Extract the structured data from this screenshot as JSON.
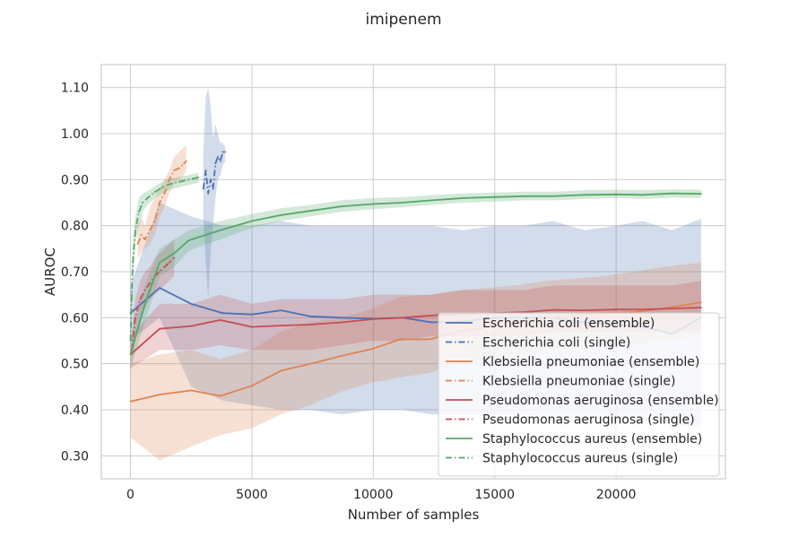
{
  "chart_data": {
    "type": "line",
    "title": "imipenem",
    "xlabel": "Number of samples",
    "ylabel": "AUROC",
    "xlim": [
      -1200,
      24500
    ],
    "ylim": [
      0.25,
      1.15
    ],
    "xticks": [
      0,
      5000,
      10000,
      15000,
      20000
    ],
    "xtick_labels": [
      "0",
      "5000",
      "10000",
      "15000",
      "20000"
    ],
    "yticks": [
      0.3,
      0.4,
      0.5,
      0.6,
      0.7,
      0.8,
      0.9,
      1.0,
      1.1
    ],
    "ytick_labels": [
      "0.30",
      "0.40",
      "0.50",
      "0.60",
      "0.70",
      "0.80",
      "0.90",
      "1.00",
      "1.10"
    ],
    "grid": true,
    "legend_position": "lower-right",
    "series": [
      {
        "name": "Escherichia coli (ensemble)",
        "color": "#4c72b0",
        "dash": "solid",
        "points": [
          [
            0,
            0.61
          ],
          [
            1200,
            0.665
          ],
          [
            2500,
            0.63
          ],
          [
            3800,
            0.61
          ],
          [
            5000,
            0.607
          ],
          [
            6200,
            0.616
          ],
          [
            7400,
            0.603
          ],
          [
            8700,
            0.6
          ],
          [
            10000,
            0.598
          ],
          [
            11200,
            0.6
          ],
          [
            12400,
            0.59
          ],
          [
            13700,
            0.592
          ],
          [
            15000,
            0.6
          ],
          [
            16200,
            0.6
          ],
          [
            17400,
            0.6
          ],
          [
            18700,
            0.59
          ],
          [
            20000,
            0.585
          ],
          [
            21100,
            0.58
          ],
          [
            22300,
            0.565
          ],
          [
            23500,
            0.6
          ]
        ],
        "band": [
          [
            0,
            0.55,
            0.67
          ],
          [
            1200,
            0.6,
            0.85
          ],
          [
            2500,
            0.45,
            0.82
          ],
          [
            3800,
            0.42,
            0.8
          ],
          [
            5000,
            0.41,
            0.8
          ],
          [
            6200,
            0.4,
            0.81
          ],
          [
            7400,
            0.4,
            0.8
          ],
          [
            8700,
            0.39,
            0.8
          ],
          [
            10000,
            0.4,
            0.8
          ],
          [
            11200,
            0.4,
            0.8
          ],
          [
            12400,
            0.39,
            0.8
          ],
          [
            13700,
            0.39,
            0.79
          ],
          [
            15000,
            0.39,
            0.8
          ],
          [
            16200,
            0.39,
            0.8
          ],
          [
            17400,
            0.38,
            0.81
          ],
          [
            18700,
            0.38,
            0.79
          ],
          [
            20000,
            0.38,
            0.8
          ],
          [
            21100,
            0.38,
            0.81
          ],
          [
            22300,
            0.37,
            0.79
          ],
          [
            23500,
            0.36,
            0.815
          ]
        ]
      },
      {
        "name": "Escherichia coli (single)",
        "color": "#4c72b0",
        "dash": "dashdot",
        "points": [
          [
            3000,
            0.88
          ],
          [
            3100,
            0.92
          ],
          [
            3200,
            0.87
          ],
          [
            3300,
            0.9
          ],
          [
            3400,
            0.88
          ],
          [
            3500,
            0.935
          ],
          [
            3600,
            0.95
          ],
          [
            3700,
            0.94
          ],
          [
            3800,
            0.96
          ],
          [
            3900,
            0.96
          ]
        ],
        "band": [
          [
            3000,
            0.82,
            0.96
          ],
          [
            3100,
            0.72,
            1.08
          ],
          [
            3200,
            0.64,
            1.1
          ],
          [
            3300,
            0.74,
            1.06
          ],
          [
            3400,
            0.8,
            0.99
          ],
          [
            3500,
            0.86,
            1.02
          ],
          [
            3600,
            0.9,
            1.0
          ],
          [
            3700,
            0.91,
            0.98
          ],
          [
            3800,
            0.93,
            0.98
          ],
          [
            3900,
            0.94,
            0.97
          ]
        ]
      },
      {
        "name": "Klebsiella pneumoniae (ensemble)",
        "color": "#dd8452",
        "dash": "solid",
        "points": [
          [
            0,
            0.418
          ],
          [
            1200,
            0.433
          ],
          [
            2500,
            0.442
          ],
          [
            3700,
            0.43
          ],
          [
            5000,
            0.452
          ],
          [
            6200,
            0.485
          ],
          [
            7400,
            0.5
          ],
          [
            8700,
            0.517
          ],
          [
            10000,
            0.533
          ],
          [
            11100,
            0.553
          ],
          [
            12300,
            0.553
          ],
          [
            13500,
            0.57
          ],
          [
            14700,
            0.58
          ],
          [
            15900,
            0.59
          ],
          [
            17100,
            0.6
          ],
          [
            18300,
            0.605
          ],
          [
            19500,
            0.61
          ],
          [
            20700,
            0.612
          ],
          [
            21900,
            0.62
          ],
          [
            23500,
            0.633
          ]
        ],
        "band": [
          [
            0,
            0.34,
            0.5
          ],
          [
            1200,
            0.29,
            0.52
          ],
          [
            2500,
            0.32,
            0.53
          ],
          [
            3700,
            0.345,
            0.51
          ],
          [
            5000,
            0.36,
            0.53
          ],
          [
            6200,
            0.39,
            0.57
          ],
          [
            7400,
            0.41,
            0.59
          ],
          [
            8700,
            0.44,
            0.6
          ],
          [
            10000,
            0.46,
            0.62
          ],
          [
            11100,
            0.47,
            0.645
          ],
          [
            12300,
            0.48,
            0.65
          ],
          [
            13500,
            0.5,
            0.66
          ],
          [
            14700,
            0.51,
            0.665
          ],
          [
            15900,
            0.52,
            0.67
          ],
          [
            17100,
            0.53,
            0.68
          ],
          [
            18300,
            0.53,
            0.685
          ],
          [
            19500,
            0.54,
            0.69
          ],
          [
            20700,
            0.54,
            0.7
          ],
          [
            21900,
            0.55,
            0.71
          ],
          [
            23500,
            0.56,
            0.72
          ]
        ]
      },
      {
        "name": "Klebsiella pneumoniae (single)",
        "color": "#dd8452",
        "dash": "dashdot",
        "points": [
          [
            300,
            0.76
          ],
          [
            450,
            0.78
          ],
          [
            600,
            0.77
          ],
          [
            800,
            0.79
          ],
          [
            1000,
            0.81
          ],
          [
            1200,
            0.85
          ],
          [
            1400,
            0.87
          ],
          [
            1600,
            0.9
          ],
          [
            1800,
            0.92
          ],
          [
            2000,
            0.925
          ],
          [
            2200,
            0.935
          ],
          [
            2300,
            0.94
          ]
        ],
        "band": [
          [
            300,
            0.73,
            0.8
          ],
          [
            450,
            0.74,
            0.82
          ],
          [
            600,
            0.75,
            0.8
          ],
          [
            800,
            0.76,
            0.84
          ],
          [
            1000,
            0.78,
            0.86
          ],
          [
            1200,
            0.82,
            0.88
          ],
          [
            1400,
            0.84,
            0.9
          ],
          [
            1600,
            0.87,
            0.92
          ],
          [
            1800,
            0.89,
            0.95
          ],
          [
            2000,
            0.9,
            0.96
          ],
          [
            2200,
            0.91,
            0.97
          ],
          [
            2300,
            0.92,
            0.975
          ]
        ]
      },
      {
        "name": "Pseudomonas aeruginosa (ensemble)",
        "color": "#c44e52",
        "dash": "solid",
        "points": [
          [
            0,
            0.52
          ],
          [
            1200,
            0.576
          ],
          [
            2500,
            0.582
          ],
          [
            3700,
            0.595
          ],
          [
            5000,
            0.58
          ],
          [
            6200,
            0.583
          ],
          [
            7400,
            0.585
          ],
          [
            8700,
            0.59
          ],
          [
            10000,
            0.597
          ],
          [
            11200,
            0.6
          ],
          [
            12400,
            0.605
          ],
          [
            13700,
            0.608
          ],
          [
            15000,
            0.61
          ],
          [
            16200,
            0.612
          ],
          [
            17400,
            0.617
          ],
          [
            18700,
            0.616
          ],
          [
            20000,
            0.618
          ],
          [
            21100,
            0.618
          ],
          [
            22300,
            0.62
          ],
          [
            23500,
            0.622
          ]
        ],
        "band": [
          [
            0,
            0.49,
            0.56
          ],
          [
            1200,
            0.53,
            0.63
          ],
          [
            2500,
            0.53,
            0.63
          ],
          [
            3700,
            0.54,
            0.65
          ],
          [
            5000,
            0.53,
            0.63
          ],
          [
            6200,
            0.53,
            0.64
          ],
          [
            7400,
            0.53,
            0.64
          ],
          [
            8700,
            0.54,
            0.64
          ],
          [
            10000,
            0.55,
            0.65
          ],
          [
            11200,
            0.55,
            0.65
          ],
          [
            12400,
            0.56,
            0.65
          ],
          [
            13700,
            0.56,
            0.66
          ],
          [
            15000,
            0.56,
            0.66
          ],
          [
            16200,
            0.56,
            0.66
          ],
          [
            17400,
            0.57,
            0.67
          ],
          [
            18700,
            0.57,
            0.67
          ],
          [
            20000,
            0.57,
            0.67
          ],
          [
            21100,
            0.57,
            0.67
          ],
          [
            22300,
            0.57,
            0.67
          ],
          [
            23500,
            0.57,
            0.68
          ]
        ]
      },
      {
        "name": "Pseudomonas aeruginosa (single)",
        "color": "#c44e52",
        "dash": "dashdot",
        "points": [
          [
            50,
            0.53
          ],
          [
            200,
            0.6
          ],
          [
            400,
            0.64
          ],
          [
            600,
            0.66
          ],
          [
            800,
            0.675
          ],
          [
            1000,
            0.69
          ],
          [
            1200,
            0.7
          ],
          [
            1400,
            0.71
          ],
          [
            1600,
            0.72
          ],
          [
            1800,
            0.73
          ]
        ],
        "band": [
          [
            50,
            0.49,
            0.57
          ],
          [
            200,
            0.56,
            0.64
          ],
          [
            400,
            0.6,
            0.68
          ],
          [
            600,
            0.62,
            0.7
          ],
          [
            800,
            0.64,
            0.71
          ],
          [
            1000,
            0.65,
            0.73
          ],
          [
            1200,
            0.66,
            0.74
          ],
          [
            1400,
            0.67,
            0.75
          ],
          [
            1600,
            0.68,
            0.76
          ],
          [
            1800,
            0.69,
            0.77
          ]
        ]
      },
      {
        "name": "Staphylococcus aureus (ensemble)",
        "color": "#55a868",
        "dash": "solid",
        "points": [
          [
            0,
            0.52
          ],
          [
            600,
            0.63
          ],
          [
            1200,
            0.72
          ],
          [
            1800,
            0.74
          ],
          [
            2400,
            0.768
          ],
          [
            3100,
            0.78
          ],
          [
            3700,
            0.79
          ],
          [
            5000,
            0.81
          ],
          [
            6200,
            0.823
          ],
          [
            7400,
            0.832
          ],
          [
            8700,
            0.842
          ],
          [
            10000,
            0.847
          ],
          [
            11200,
            0.85
          ],
          [
            12400,
            0.855
          ],
          [
            13700,
            0.86
          ],
          [
            15000,
            0.862
          ],
          [
            16200,
            0.864
          ],
          [
            17400,
            0.864
          ],
          [
            18700,
            0.867
          ],
          [
            20000,
            0.868
          ],
          [
            21100,
            0.867
          ],
          [
            22300,
            0.87
          ],
          [
            23500,
            0.869
          ]
        ],
        "band": [
          [
            0,
            0.49,
            0.55
          ],
          [
            600,
            0.59,
            0.67
          ],
          [
            1200,
            0.69,
            0.75
          ],
          [
            1800,
            0.71,
            0.77
          ],
          [
            2400,
            0.745,
            0.79
          ],
          [
            3100,
            0.76,
            0.8
          ],
          [
            3700,
            0.77,
            0.81
          ],
          [
            5000,
            0.795,
            0.825
          ],
          [
            6200,
            0.81,
            0.838
          ],
          [
            7400,
            0.82,
            0.845
          ],
          [
            8700,
            0.83,
            0.855
          ],
          [
            10000,
            0.836,
            0.86
          ],
          [
            11200,
            0.84,
            0.862
          ],
          [
            12400,
            0.845,
            0.866
          ],
          [
            13700,
            0.85,
            0.87
          ],
          [
            15000,
            0.852,
            0.872
          ],
          [
            16200,
            0.855,
            0.874
          ],
          [
            17400,
            0.855,
            0.874
          ],
          [
            18700,
            0.858,
            0.877
          ],
          [
            20000,
            0.86,
            0.878
          ],
          [
            21100,
            0.858,
            0.877
          ],
          [
            22300,
            0.861,
            0.879
          ],
          [
            23500,
            0.86,
            0.878
          ]
        ]
      },
      {
        "name": "Staphylococcus aureus (single)",
        "color": "#55a868",
        "dash": "dashdot",
        "points": [
          [
            0,
            0.55
          ],
          [
            50,
            0.65
          ],
          [
            100,
            0.72
          ],
          [
            200,
            0.79
          ],
          [
            350,
            0.83
          ],
          [
            500,
            0.85
          ],
          [
            700,
            0.86
          ],
          [
            1000,
            0.873
          ],
          [
            1300,
            0.883
          ],
          [
            1600,
            0.89
          ],
          [
            2000,
            0.895
          ],
          [
            2400,
            0.9
          ],
          [
            2800,
            0.905
          ]
        ],
        "band": [
          [
            0,
            0.5,
            0.6
          ],
          [
            50,
            0.6,
            0.7
          ],
          [
            100,
            0.68,
            0.76
          ],
          [
            200,
            0.76,
            0.82
          ],
          [
            350,
            0.8,
            0.86
          ],
          [
            500,
            0.83,
            0.87
          ],
          [
            700,
            0.845,
            0.875
          ],
          [
            1000,
            0.86,
            0.886
          ],
          [
            1300,
            0.87,
            0.895
          ],
          [
            1600,
            0.878,
            0.902
          ],
          [
            2000,
            0.883,
            0.906
          ],
          [
            2400,
            0.888,
            0.91
          ],
          [
            2800,
            0.893,
            0.915
          ]
        ]
      }
    ]
  }
}
